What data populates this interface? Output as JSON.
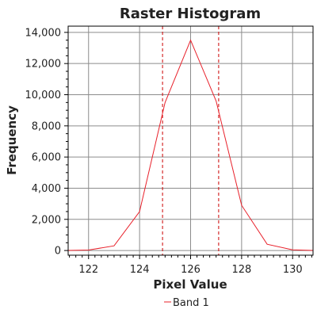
{
  "chart_data": {
    "type": "line",
    "title": "Raster Histogram",
    "xlabel": "Pixel Value",
    "ylabel": "Frequency",
    "xlim": [
      121.2,
      130.8
    ],
    "ylim": [
      -300,
      14400
    ],
    "xticks": [
      122,
      124,
      126,
      128,
      130
    ],
    "xtick_labels": [
      "122",
      "124",
      "126",
      "128",
      "130"
    ],
    "yticks": [
      0,
      2000,
      4000,
      6000,
      8000,
      10000,
      12000,
      14000
    ],
    "ytick_labels": [
      "0",
      "2,000",
      "4,000",
      "6,000",
      "8,000",
      "10,000",
      "12,000",
      "14,000"
    ],
    "grid": true,
    "legend": "bottom-center",
    "series": [
      {
        "name": "Band 1",
        "color": "#e8202a",
        "x": [
          121,
          122,
          123,
          124,
          125,
          126,
          127,
          128,
          129,
          130,
          131
        ],
        "y": [
          0,
          30,
          300,
          2500,
          9500,
          13500,
          9600,
          2900,
          400,
          40,
          0
        ]
      }
    ],
    "vertical_lines": [
      {
        "x": 124.9,
        "color": "#cc0000",
        "style": "dashed"
      },
      {
        "x": 127.1,
        "color": "#cc0000",
        "style": "dashed"
      }
    ]
  }
}
